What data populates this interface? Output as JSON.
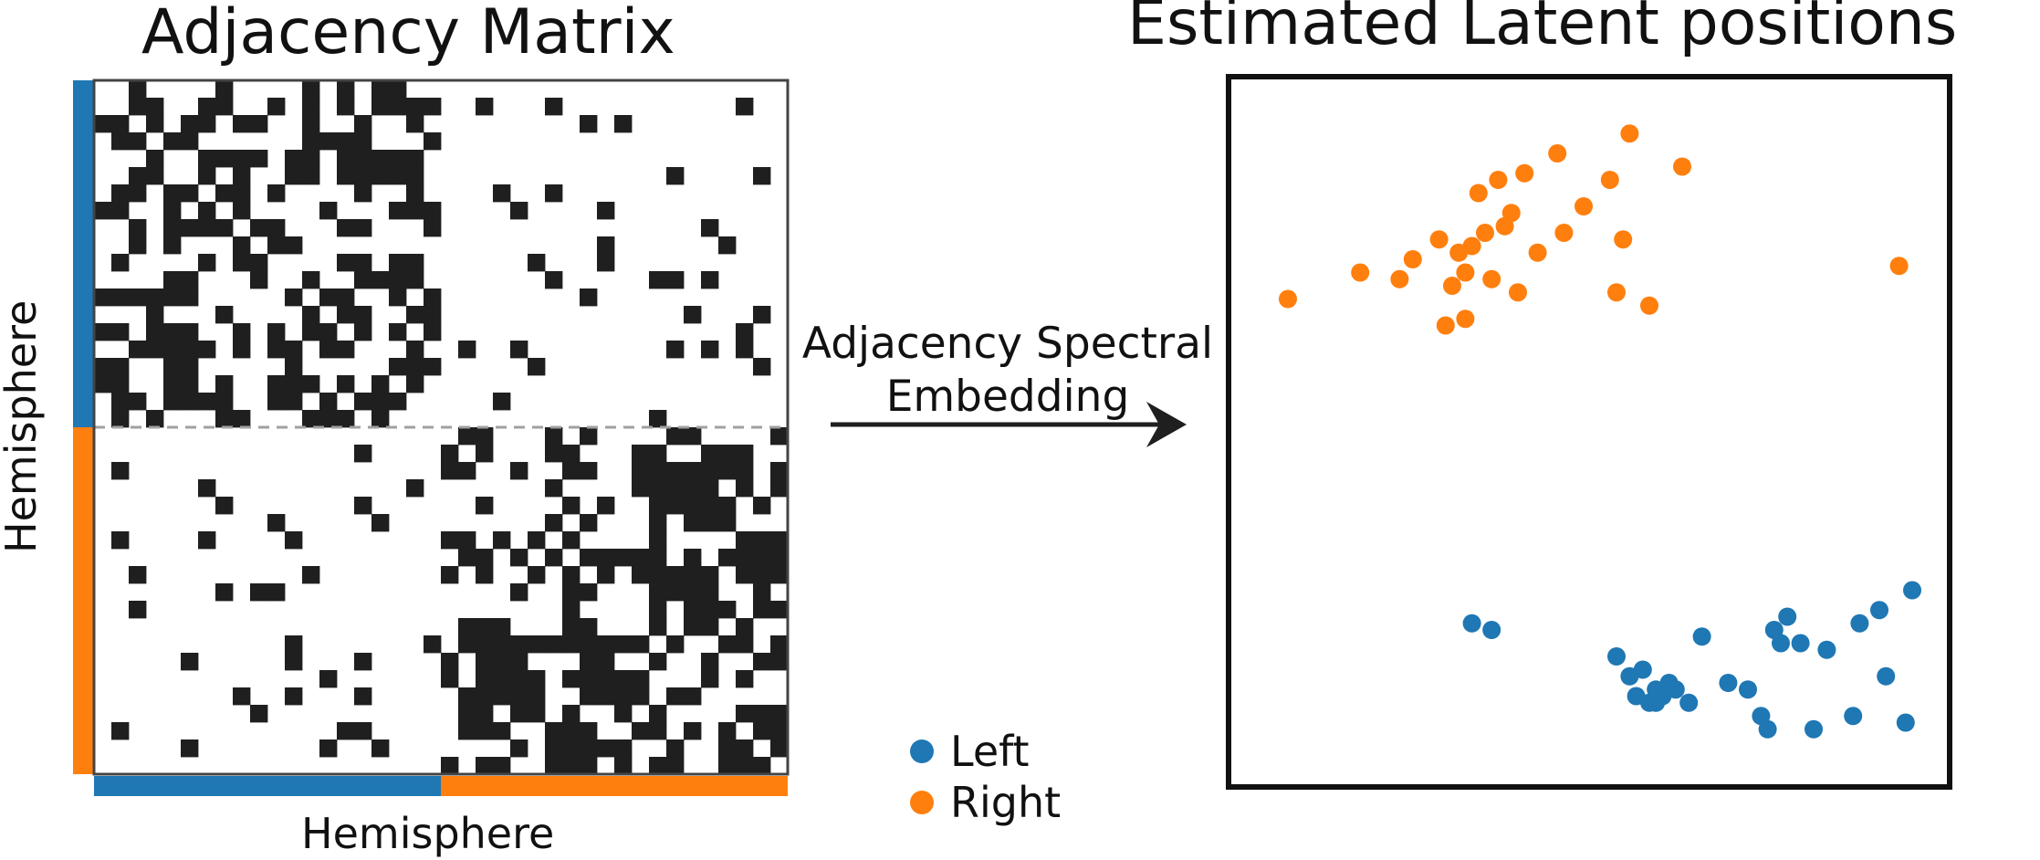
{
  "matrix_panel": {
    "title": "Adjacency Matrix",
    "x_label": "Hemisphere",
    "y_label": "Hemisphere",
    "size": 40,
    "split": 20,
    "density_within": 0.55,
    "density_between": 0.09,
    "cell_color": "#1f1f1f",
    "split_line_color": "#a0a0a0"
  },
  "arrow": {
    "line1": "Adjacency Spectral",
    "line2": "Embedding"
  },
  "latent_panel": {
    "title": "Estimated Latent positions"
  },
  "legend": {
    "items": [
      {
        "label": "Left",
        "color": "#1f77b4"
      },
      {
        "label": "Right",
        "color": "#ff7f0e"
      }
    ]
  },
  "groups": [
    {
      "name": "Left",
      "color": "#1f77b4"
    },
    {
      "name": "Right",
      "color": "#ff7f0e"
    }
  ],
  "scatter": {
    "Right": [
      [
        0.05,
        0.7
      ],
      [
        0.16,
        0.74
      ],
      [
        0.24,
        0.76
      ],
      [
        0.28,
        0.79
      ],
      [
        0.3,
        0.72
      ],
      [
        0.31,
        0.77
      ],
      [
        0.32,
        0.74
      ],
      [
        0.33,
        0.78
      ],
      [
        0.34,
        0.86
      ],
      [
        0.35,
        0.8
      ],
      [
        0.37,
        0.88
      ],
      [
        0.38,
        0.81
      ],
      [
        0.39,
        0.83
      ],
      [
        0.4,
        0.71
      ],
      [
        0.41,
        0.89
      ],
      [
        0.43,
        0.77
      ],
      [
        0.46,
        0.92
      ],
      [
        0.47,
        0.8
      ],
      [
        0.5,
        0.84
      ],
      [
        0.54,
        0.88
      ],
      [
        0.55,
        0.71
      ],
      [
        0.56,
        0.79
      ],
      [
        0.57,
        0.95
      ],
      [
        0.6,
        0.69
      ],
      [
        0.65,
        0.9
      ],
      [
        0.98,
        0.75
      ],
      [
        0.29,
        0.66
      ],
      [
        0.32,
        0.67
      ],
      [
        0.22,
        0.73
      ],
      [
        0.36,
        0.73
      ]
    ],
    "Left": [
      [
        0.33,
        0.21
      ],
      [
        0.36,
        0.2
      ],
      [
        0.55,
        0.16
      ],
      [
        0.57,
        0.13
      ],
      [
        0.58,
        0.1
      ],
      [
        0.6,
        0.09
      ],
      [
        0.61,
        0.11
      ],
      [
        0.62,
        0.1
      ],
      [
        0.63,
        0.12
      ],
      [
        0.66,
        0.09
      ],
      [
        0.68,
        0.19
      ],
      [
        0.72,
        0.12
      ],
      [
        0.75,
        0.11
      ],
      [
        0.77,
        0.07
      ],
      [
        0.78,
        0.05
      ],
      [
        0.79,
        0.2
      ],
      [
        0.8,
        0.18
      ],
      [
        0.81,
        0.22
      ],
      [
        0.83,
        0.18
      ],
      [
        0.85,
        0.05
      ],
      [
        0.87,
        0.17
      ],
      [
        0.91,
        0.07
      ],
      [
        0.92,
        0.21
      ],
      [
        0.95,
        0.23
      ],
      [
        0.96,
        0.13
      ],
      [
        0.99,
        0.06
      ],
      [
        1.0,
        0.26
      ],
      [
        0.61,
        0.09
      ],
      [
        0.64,
        0.11
      ],
      [
        0.59,
        0.14
      ]
    ]
  }
}
